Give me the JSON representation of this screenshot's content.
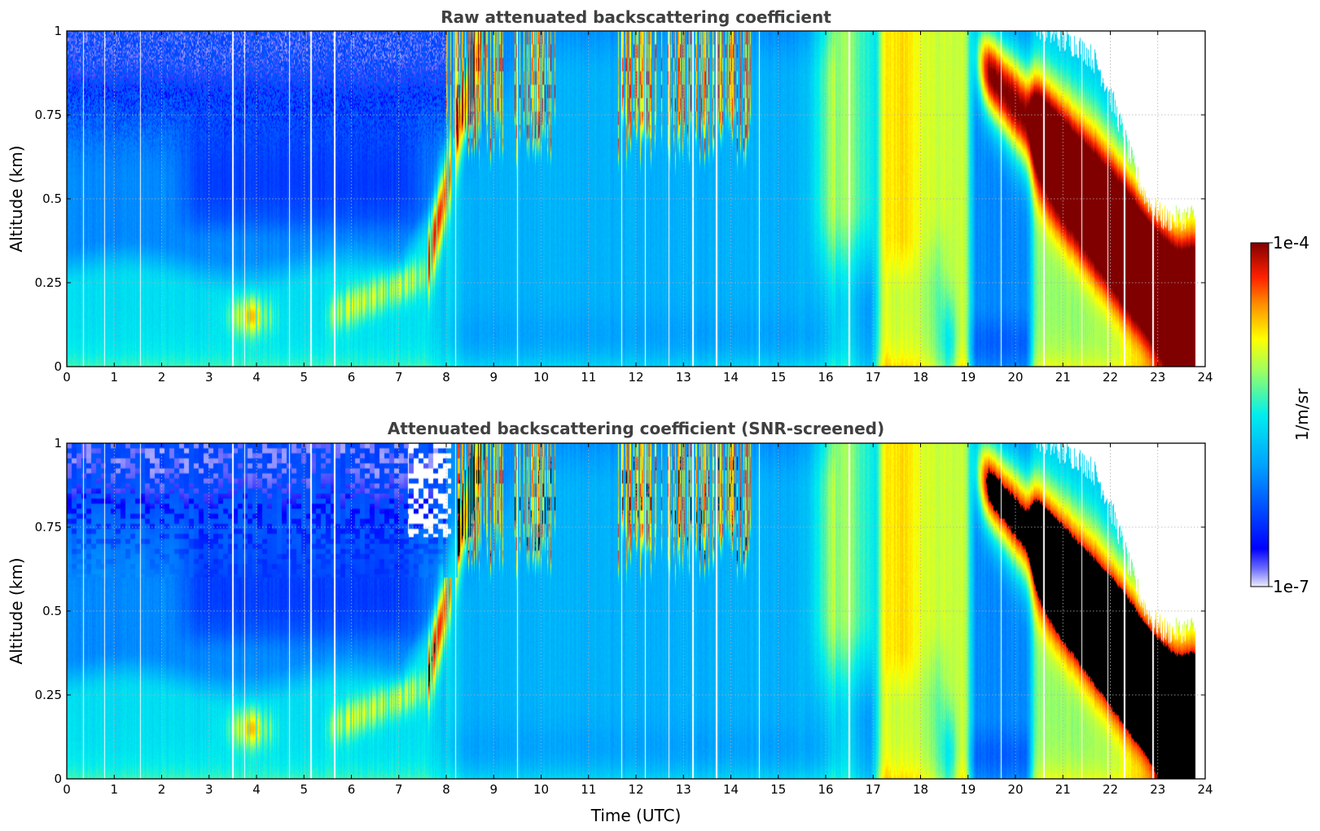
{
  "chart_data": [
    {
      "type": "heatmap",
      "title": "Raw attenuated backscattering coefficient",
      "xlabel": "",
      "ylabel": "Altitude (km)",
      "xlim": [
        0,
        24
      ],
      "ylim": [
        0,
        1
      ],
      "xticks": [
        "0",
        "1",
        "2",
        "3",
        "4",
        "5",
        "6",
        "7",
        "8",
        "9",
        "10",
        "11",
        "12",
        "13",
        "14",
        "15",
        "16",
        "17",
        "18",
        "19",
        "20",
        "21",
        "22",
        "23",
        "24"
      ],
      "yticks": [
        "0",
        "0.25",
        "0.5",
        "0.75",
        "1"
      ],
      "grid": true,
      "data_end_time": 23.8,
      "blank_profiles_utc": [
        0.35,
        0.8,
        1.55,
        3.5,
        3.75,
        4.7,
        5.15,
        5.65,
        8.2,
        9.5,
        11.7,
        12.2,
        12.7,
        13.2,
        13.7,
        14.6,
        16.5,
        19.7,
        20.6,
        21.4,
        21.95,
        22.3,
        22.9
      ],
      "features": [
        {
          "name": "surface aerosol layer",
          "t_start": 0,
          "t_end": 7.5,
          "top_km": 0.3,
          "level_log10": -5.9
        },
        {
          "name": "boundary layer growth",
          "t_start": 7.5,
          "t_end": 8.7,
          "top_km": 0.55,
          "level_log10": -5.3
        },
        {
          "name": "scattered low clouds",
          "t_start": 8.0,
          "t_end": 14.4,
          "top_km": 1.0,
          "bottom_km": 0.6,
          "level_log10": -4.3
        },
        {
          "name": "convective boundary layer",
          "t_start": 8.7,
          "t_end": 16.0,
          "top_km": 1.0,
          "level_log10": -6.1
        },
        {
          "name": "fog / low cloud",
          "t_start": 17.0,
          "t_end": 19.0,
          "top_km": 1.0,
          "level_log10": -4.9
        },
        {
          "name": "descending cloud layer",
          "t_start": 19.0,
          "t_end": 23.8,
          "top_km": 0.95,
          "bottom_km": 0.12,
          "level_log10": -4.1
        }
      ]
    },
    {
      "type": "heatmap",
      "title": "Attenuated backscattering coefficient (SNR-screened)",
      "xlabel": "Time (UTC)",
      "ylabel": "Altitude (km)",
      "xlim": [
        0,
        24
      ],
      "ylim": [
        0,
        1
      ],
      "xticks": [
        "0",
        "1",
        "2",
        "3",
        "4",
        "5",
        "6",
        "7",
        "8",
        "9",
        "10",
        "11",
        "12",
        "13",
        "14",
        "15",
        "16",
        "17",
        "18",
        "19",
        "20",
        "21",
        "22",
        "23",
        "24"
      ],
      "yticks": [
        "0",
        "0.25",
        "0.5",
        "0.75",
        "1"
      ],
      "grid": true,
      "screened": true
    }
  ],
  "colorbar": {
    "label": "1/m/sr",
    "max_label": "1e-4",
    "min_label": "1e-7",
    "scale": "log",
    "range": [
      1e-07,
      0.0001
    ],
    "colormap": "jet"
  }
}
